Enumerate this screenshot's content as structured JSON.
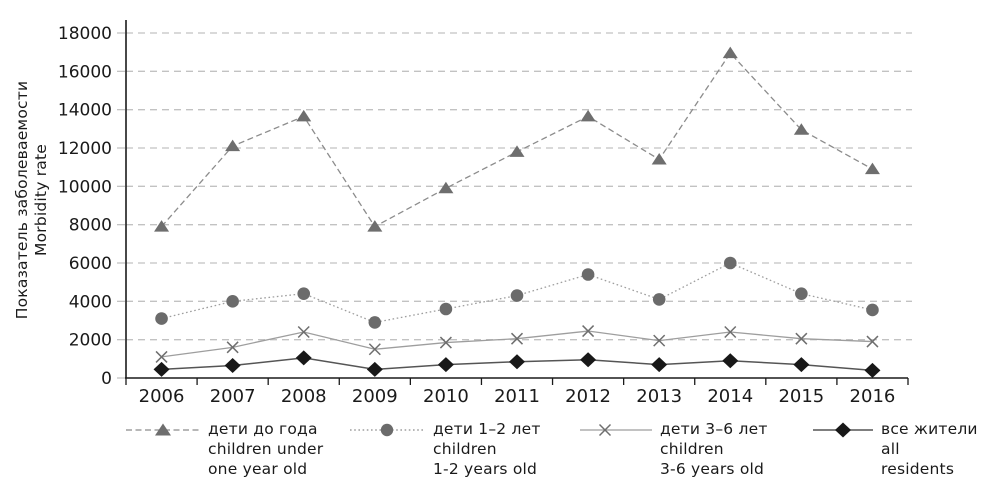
{
  "page": {
    "background": "#ffffff"
  },
  "chart_data": {
    "type": "line",
    "title": "",
    "ylabel_ru": "Показатель заболеваемости",
    "ylabel_en": "Morbidity rate",
    "x": [
      2006,
      2007,
      2008,
      2009,
      2010,
      2011,
      2012,
      2013,
      2014,
      2015,
      2016
    ],
    "ylim": [
      0,
      18000
    ],
    "ytick_step": 2000,
    "grid": "horizontal-dashed",
    "grid_color": "#c2c2c2",
    "axis_color": "#1a1a1a",
    "text_color": "#1a1a1a",
    "legend_position": "bottom",
    "series": [
      {
        "id": "children-under-one-year",
        "marker": "triangle",
        "line": "dashed",
        "line_color": "#8c8c8c",
        "marker_color": "#6e6e6e",
        "legend": [
          "дети до года",
          "children under",
          "one year old"
        ],
        "values": [
          7900,
          12100,
          13650,
          7900,
          9900,
          11800,
          13650,
          11400,
          16950,
          12950,
          10900
        ]
      },
      {
        "id": "children-1-2-years",
        "marker": "circle",
        "line": "dotted",
        "line_color": "#9e9e9e",
        "marker_color": "#6b6b6b",
        "legend": [
          "дети 1–2 лет",
          "children",
          "1-2 years old"
        ],
        "values": [
          3100,
          4000,
          4400,
          2900,
          3600,
          4300,
          5400,
          4100,
          6000,
          4400,
          3550
        ]
      },
      {
        "id": "children-3-6-years",
        "marker": "x",
        "line": "solid",
        "line_color": "#9e9e9e",
        "marker_color": "#6e6e6e",
        "legend": [
          "дети 3–6 лет",
          "children",
          "3-6 years old"
        ],
        "values": [
          1100,
          1600,
          2400,
          1500,
          1850,
          2050,
          2450,
          1950,
          2400,
          2050,
          1900
        ]
      },
      {
        "id": "all-residents",
        "marker": "diamond",
        "line": "solid",
        "line_color": "#555555",
        "marker_color": "#181818",
        "legend": [
          "все жители",
          "all",
          "residents"
        ],
        "values": [
          450,
          650,
          1050,
          450,
          700,
          850,
          950,
          700,
          900,
          700,
          400
        ]
      }
    ]
  }
}
